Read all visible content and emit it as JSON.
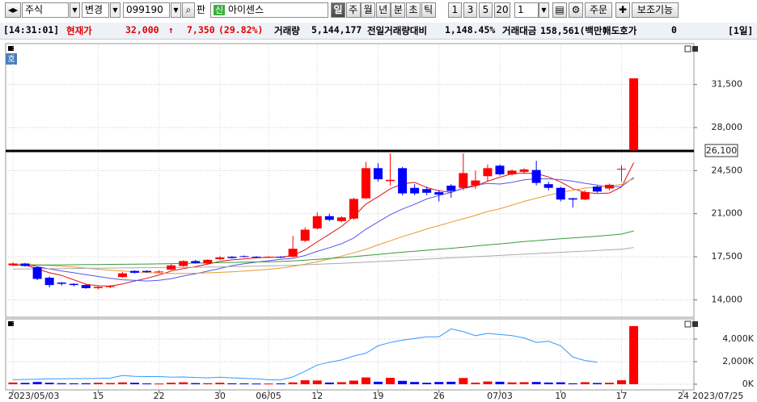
{
  "toolbar": {
    "market": "주식",
    "change": "변경",
    "code": "099190",
    "pan": "판",
    "new_badge": "신",
    "name": "아이센스",
    "periods": [
      "일",
      "주",
      "월",
      "년",
      "분",
      "초",
      "틱"
    ],
    "intervals": [
      "1",
      "3",
      "5",
      "20"
    ],
    "count": "1",
    "order": "주문",
    "aux": "보조기능"
  },
  "info_bar": {
    "time": "[14:31:01]",
    "price_label": "현재가",
    "price": "32,000",
    "arrow": "↑",
    "change": "7,350",
    "change_pct": "(29.82%)",
    "volume_label": "거래량",
    "volume": "5,144,177",
    "prev_ratio_label": "전일거래량대비",
    "prev_ratio": "1,148.45%",
    "amount_label": "거래대금",
    "amount": "158,561(백만)",
    "ask_label": "매도호가",
    "ask": "0",
    "period": "[1일]"
  },
  "chart_badge": "호",
  "chart_data": {
    "type": "candlestick",
    "categories": [
      "2023/05/03",
      null,
      null,
      null,
      null,
      null,
      null,
      "15",
      null,
      null,
      null,
      null,
      "22",
      null,
      null,
      null,
      null,
      "30",
      null,
      null,
      null,
      "06/05",
      null,
      null,
      null,
      "12",
      null,
      null,
      null,
      null,
      "19",
      null,
      null,
      null,
      null,
      "26",
      null,
      null,
      null,
      null,
      "07/03",
      null,
      null,
      null,
      null,
      "10",
      null,
      null,
      null,
      null,
      "17",
      null
    ],
    "future_labels": [
      "24",
      "2023/07/25"
    ],
    "open": [
      16800,
      16950,
      16650,
      15800,
      15400,
      15300,
      15200,
      14950,
      15050,
      15850,
      16350,
      16350,
      16250,
      16450,
      16750,
      17150,
      16950,
      17300,
      17500,
      17550,
      17500,
      17450,
      17500,
      17500,
      18800,
      19800,
      20800,
      20400,
      20600,
      22250,
      24700,
      23650,
      24700,
      23100,
      23000,
      22750,
      23280,
      23100,
      23300,
      24050,
      24900,
      24200,
      24400,
      24550,
      23400,
      23100,
      22250,
      22150,
      23200,
      23050,
      24600,
      26150
    ],
    "high": [
      17050,
      17000,
      16700,
      15900,
      15450,
      15350,
      15250,
      15100,
      15200,
      16250,
      16400,
      16400,
      16400,
      16900,
      17200,
      17250,
      17300,
      17550,
      17550,
      17600,
      17550,
      17550,
      17550,
      19200,
      19900,
      21100,
      21000,
      20800,
      22300,
      25200,
      25100,
      25900,
      24800,
      23400,
      23200,
      22900,
      23400,
      25900,
      24500,
      25000,
      25000,
      24600,
      24700,
      25300,
      23600,
      23200,
      22300,
      22900,
      23300,
      23450,
      24950,
      32000
    ],
    "low": [
      16750,
      16700,
      15600,
      15000,
      15150,
      15100,
      14900,
      14850,
      14950,
      15800,
      16150,
      16200,
      16200,
      16400,
      16700,
      16950,
      16900,
      17250,
      17350,
      17450,
      17400,
      17400,
      17400,
      17450,
      18700,
      19700,
      20400,
      20300,
      20500,
      22200,
      23600,
      23300,
      22500,
      22500,
      22500,
      22000,
      22300,
      22900,
      23000,
      23600,
      24100,
      24100,
      24300,
      23300,
      22900,
      22000,
      21500,
      22100,
      22700,
      22900,
      23600,
      26100
    ],
    "close": [
      16950,
      16750,
      15700,
      15200,
      15300,
      15200,
      14950,
      15050,
      15100,
      16150,
      16200,
      16250,
      16300,
      16800,
      17150,
      17000,
      17250,
      17450,
      17400,
      17500,
      17450,
      17500,
      17450,
      18150,
      19700,
      20800,
      20500,
      20700,
      22200,
      24700,
      23800,
      23750,
      22650,
      22650,
      22700,
      22550,
      22850,
      24300,
      23700,
      24700,
      24200,
      24500,
      24600,
      23500,
      23100,
      22150,
      22150,
      22750,
      22800,
      23350,
      24650,
      32000
    ],
    "up_color": "#ff0000",
    "down_color": "#0000ff",
    "ma_series": [
      {
        "color": "#e01010",
        "values": [
          16900,
          16850,
          16500,
          16200,
          15980,
          15630,
          15270,
          15140,
          15120,
          15290,
          15530,
          15750,
          16020,
          16340,
          16540,
          16700,
          16900,
          17130,
          17250,
          17320,
          17410,
          17460,
          17460,
          17610,
          18060,
          18720,
          19330,
          19970,
          20780,
          21780,
          22380,
          23030,
          23420,
          23550,
          23130,
          22860,
          22740,
          23070,
          23240,
          23640,
          23970,
          24240,
          24300,
          24260,
          23990,
          23580,
          23030,
          22730,
          22640,
          22680,
          23180,
          25150
        ]
      },
      {
        "color": "#5555ee",
        "values": [
          16900,
          16880,
          16700,
          16500,
          16350,
          16200,
          16050,
          15900,
          15750,
          15630,
          15580,
          15530,
          15590,
          15720,
          15940,
          16120,
          16330,
          16550,
          16780,
          16930,
          17060,
          17180,
          17300,
          17370,
          17600,
          17940,
          18240,
          18560,
          19030,
          19740,
          20330,
          20920,
          21380,
          21760,
          22200,
          22480,
          22730,
          23090,
          23330,
          23460,
          23410,
          23550,
          23760,
          23840,
          23830,
          23770,
          23640,
          23470,
          23330,
          23160,
          23210,
          23950
        ]
      },
      {
        "color": "#e89a30",
        "values": [
          16900,
          16880,
          16850,
          16800,
          16740,
          16670,
          16580,
          16490,
          16400,
          16340,
          16280,
          16220,
          16170,
          16140,
          16150,
          16160,
          16190,
          16230,
          16280,
          16340,
          16400,
          16480,
          16580,
          16720,
          16900,
          17100,
          17320,
          17560,
          17820,
          18100,
          18460,
          18800,
          19130,
          19440,
          19760,
          20030,
          20310,
          20590,
          20860,
          21180,
          21400,
          21700,
          22000,
          22260,
          22500,
          22730,
          22910,
          23080,
          23170,
          23260,
          23380,
          23850
        ]
      },
      {
        "color": "#3a9a3a",
        "values": [
          16800,
          16810,
          16820,
          16830,
          16840,
          16850,
          16860,
          16870,
          16880,
          16890,
          16900,
          16910,
          16920,
          16940,
          16960,
          16980,
          17000,
          17020,
          17040,
          17060,
          17080,
          17100,
          17120,
          17160,
          17220,
          17290,
          17360,
          17430,
          17510,
          17600,
          17690,
          17780,
          17870,
          17950,
          18030,
          18110,
          18190,
          18280,
          18370,
          18460,
          18550,
          18640,
          18730,
          18810,
          18890,
          18960,
          19030,
          19100,
          19170,
          19250,
          19340,
          19600
        ]
      },
      {
        "color": "#aaaaaa",
        "values": [
          16500,
          16510,
          16520,
          16530,
          16540,
          16550,
          16560,
          16570,
          16580,
          16590,
          16600,
          16610,
          16620,
          16630,
          16640,
          16650,
          16660,
          16680,
          16700,
          16720,
          16740,
          16760,
          16780,
          16810,
          16850,
          16890,
          16930,
          16970,
          17010,
          17060,
          17110,
          17160,
          17210,
          17260,
          17310,
          17360,
          17410,
          17460,
          17510,
          17560,
          17610,
          17660,
          17710,
          17760,
          17810,
          17860,
          17910,
          17960,
          18010,
          18060,
          18110,
          18250
        ]
      }
    ],
    "ylim": [
      12650,
      34300
    ],
    "yticks": [
      {
        "value": 14000,
        "label": "14,000"
      },
      {
        "value": 17500,
        "label": "17,500"
      },
      {
        "value": 21000,
        "label": "21,000"
      },
      {
        "value": 24500,
        "label": "24,500"
      },
      {
        "value": 28000,
        "label": "28,000"
      },
      {
        "value": 31500,
        "label": "31,500"
      }
    ],
    "price_line": {
      "value": 26100,
      "label": "26,100"
    },
    "grid": true,
    "volume": {
      "values": [
        150,
        120,
        200,
        130,
        90,
        80,
        90,
        130,
        110,
        160,
        130,
        70,
        60,
        130,
        170,
        100,
        90,
        130,
        80,
        70,
        60,
        60,
        70,
        160,
        350,
        330,
        150,
        180,
        320,
        600,
        220,
        570,
        300,
        200,
        130,
        200,
        220,
        550,
        140,
        240,
        220,
        160,
        180,
        200,
        150,
        170,
        80,
        180,
        110,
        130,
        350,
        5144
      ],
      "line_color": "#3399ff",
      "line": [
        400,
        420,
        450,
        480,
        480,
        500,
        500,
        520,
        540,
        780,
        700,
        680,
        680,
        620,
        640,
        600,
        560,
        620,
        560,
        520,
        480,
        400,
        380,
        650,
        1150,
        1700,
        1950,
        2150,
        2500,
        2750,
        3400,
        3700,
        3900,
        4050,
        4200,
        4200,
        4900,
        4650,
        4300,
        4500,
        4400,
        4300,
        4100,
        3700,
        3800,
        3400,
        2400,
        2100,
        1950,
        null,
        null,
        null
      ],
      "ylim": [
        -430,
        5640
      ],
      "yticks": [
        {
          "value": 0,
          "label": "0K"
        },
        {
          "value": 2000,
          "label": "2,000K"
        },
        {
          "value": 4000,
          "label": "4,000K"
        }
      ]
    }
  }
}
